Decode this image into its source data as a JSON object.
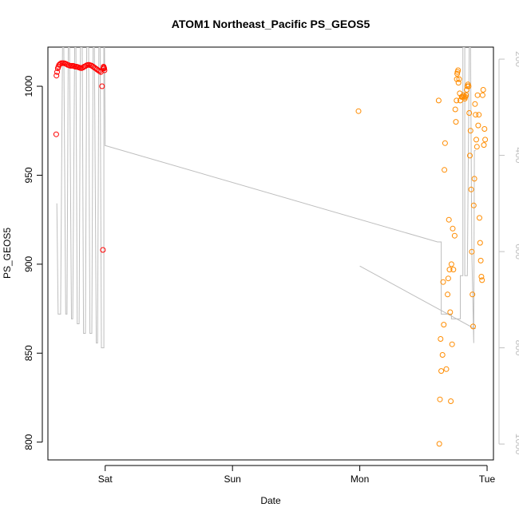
{
  "chart_data": {
    "type": "scatter",
    "title": "ATOM1 Northeast_Pacific PS_GEOS5",
    "xlabel": "Date",
    "ylabel": "PS_GEOS5",
    "x_unit": "days since Saturday 00:00",
    "xlim": [
      -0.45,
      3.05
    ],
    "ylim": [
      790,
      1022
    ],
    "y2lim": [
      1033,
      175
    ],
    "x_ticks": [
      {
        "label": "Sat",
        "value": 0
      },
      {
        "label": "Sun",
        "value": 1
      },
      {
        "label": "Mon",
        "value": 2
      },
      {
        "label": "Tue",
        "value": 3
      }
    ],
    "y_ticks": [
      {
        "label": "800",
        "value": 800
      },
      {
        "label": "850",
        "value": 850
      },
      {
        "label": "900",
        "value": 900
      },
      {
        "label": "950",
        "value": 950
      },
      {
        "label": "1000",
        "value": 1000
      }
    ],
    "y2_ticks": [
      {
        "label": "200",
        "value": 200
      },
      {
        "label": "400",
        "value": 400
      },
      {
        "label": "600",
        "value": 600
      },
      {
        "label": "800",
        "value": 800
      },
      {
        "label": "1000",
        "value": 1000
      }
    ],
    "colors": {
      "series_red": "#ff0000",
      "series_orange": "#ff8c00",
      "altitude_line": "#bebebe",
      "axis": "#000000",
      "secondary_axis": "#c0c0c0"
    },
    "series": [
      {
        "color": "#ff0000",
        "marker": "open-circle",
        "x": [
          -0.385,
          -0.383,
          -0.378,
          -0.372,
          -0.368,
          -0.362,
          -0.355,
          -0.345,
          -0.335,
          -0.325,
          -0.315,
          -0.305,
          -0.295,
          -0.285,
          -0.275,
          -0.265,
          -0.255,
          -0.245,
          -0.235,
          -0.225,
          -0.215,
          -0.205,
          -0.195,
          -0.185,
          -0.175,
          -0.165,
          -0.155,
          -0.145,
          -0.135,
          -0.125,
          -0.115,
          -0.105,
          -0.095,
          -0.085,
          -0.075,
          -0.065,
          -0.055,
          -0.045,
          -0.035,
          -0.025,
          -0.018,
          -0.012,
          -0.008,
          -0.005,
          -0.01,
          -0.015
        ],
        "y": [
          973,
          1006,
          1008,
          1010,
          1011,
          1012,
          1012.5,
          1013,
          1013,
          1013,
          1012.8,
          1012.5,
          1012,
          1011.8,
          1011.5,
          1011.5,
          1011.5,
          1011.3,
          1011,
          1011,
          1010.8,
          1010.5,
          1010.3,
          1010.2,
          1010.5,
          1011,
          1011.3,
          1011.8,
          1012,
          1012,
          1011.8,
          1011.5,
          1011,
          1010.5,
          1010,
          1009.5,
          1009,
          1008.5,
          1008,
          1000,
          908,
          1011,
          1010,
          1009,
          1010.5,
          1010
        ]
      },
      {
        "color": "#ff8c00",
        "marker": "open-circle",
        "x": [
          1.99,
          2.62,
          2.625,
          2.63,
          2.635,
          2.64,
          2.65,
          2.655,
          2.66,
          2.665,
          2.67,
          2.68,
          2.69,
          2.695,
          2.7,
          2.705,
          2.71,
          2.715,
          2.72,
          2.725,
          2.73,
          2.735,
          2.745,
          2.75,
          2.755,
          2.76,
          2.762,
          2.765,
          2.768,
          2.772,
          2.775,
          2.78,
          2.785,
          2.79,
          2.8,
          2.805,
          2.81,
          2.815,
          2.82,
          2.825,
          2.83,
          2.835,
          2.84,
          2.845,
          2.85,
          2.855,
          2.86,
          2.865,
          2.87,
          2.875,
          2.88,
          2.885,
          2.89,
          2.895,
          2.9,
          2.905,
          2.91,
          2.915,
          2.92,
          2.925,
          2.93,
          2.935,
          2.94,
          2.945,
          2.95,
          2.955,
          2.96,
          2.965,
          2.97,
          2.975,
          2.98,
          2.985
        ],
        "y": [
          986,
          992,
          799,
          824,
          858,
          840,
          849,
          890,
          866,
          953,
          968,
          841,
          883,
          892,
          925,
          897,
          873,
          823,
          900,
          855,
          920,
          897,
          916,
          987,
          980,
          992,
          1004,
          1007,
          1008,
          1009,
          1002,
          1004,
          996,
          992,
          994,
          994,
          994,
          995,
          994,
          993,
          994,
          995,
          998,
          1000,
          1001,
          1000,
          985,
          961,
          975,
          942,
          907,
          883,
          865,
          933,
          948,
          990,
          984,
          970,
          966,
          995,
          978,
          984,
          926,
          912,
          902,
          893,
          891,
          995,
          998,
          967,
          976,
          970
        ]
      }
    ],
    "altitude_line": {
      "color": "#bebebe",
      "axis": "right",
      "segments": [
        {
          "x": [
            -0.38,
            -0.37,
            -0.36,
            -0.35,
            -0.335,
            -0.325,
            -0.31,
            -0.3,
            -0.29,
            -0.28,
            -0.265,
            -0.255,
            -0.24,
            -0.23,
            -0.22,
            -0.205,
            -0.195,
            -0.18,
            -0.17,
            -0.155,
            -0.145,
            -0.13,
            -0.12,
            -0.105,
            -0.095,
            -0.085,
            -0.07,
            -0.06,
            -0.05,
            -0.04,
            -0.03,
            -0.02,
            -0.01,
            -0.01,
            -0.005,
            0.0,
            0.005
          ],
          "y": [
            500,
            730,
            730,
            730,
            150,
            150,
            730,
            730,
            150,
            150,
            740,
            740,
            150,
            150,
            750,
            750,
            150,
            150,
            770,
            770,
            150,
            150,
            770,
            770,
            150,
            150,
            790,
            790,
            150,
            150,
            800,
            800,
            800,
            150,
            150,
            380,
            380
          ]
        },
        {
          "x": [
            0.005,
            2.61,
            2.61,
            2.64,
            2.64,
            2.72,
            2.72,
            2.79,
            2.79,
            2.81,
            2.81,
            2.825,
            2.825,
            2.845,
            2.86,
            2.87,
            2.88,
            2.895,
            2.9,
            2.91
          ],
          "y": [
            380,
            580,
            580,
            580,
            730,
            730,
            740,
            740,
            650,
            650,
            150,
            150,
            650,
            650,
            150,
            150,
            600,
            790,
            390,
            390
          ]
        },
        {
          "x": [
            2.0,
            2.9,
            2.91
          ],
          "y": [
            630,
            760,
            760
          ]
        }
      ]
    }
  }
}
